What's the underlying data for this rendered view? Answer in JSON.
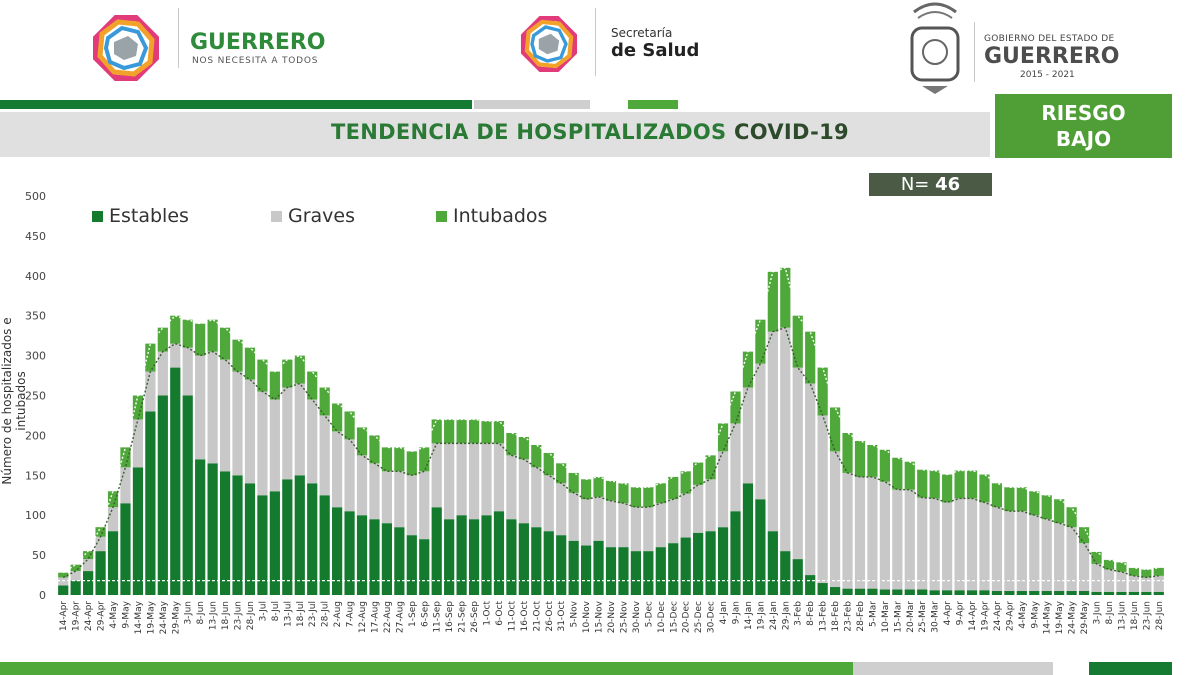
{
  "header": {
    "left_brand": {
      "name": "GUERRERO",
      "tagline": "NOS NECESITA A TODOS"
    },
    "center_brand": {
      "line1": "Secretaría",
      "line2": "de Salud"
    },
    "right_brand": {
      "line1": "GOBIERNO DEL ESTADO DE",
      "line2": "GUERRERO",
      "years": "2015 - 2021"
    }
  },
  "title": {
    "part1": "TENDENCIA DE HOSPITALIZADOS ",
    "part2": "COVID-19"
  },
  "risk": {
    "line1": "RIESGO",
    "line2": "BAJO"
  },
  "n_label": {
    "prefix": "N= ",
    "value": "46"
  },
  "colors": {
    "estables": "#147a2e",
    "graves": "#c8c8c8",
    "intubados": "#4fa83a",
    "risk_green": "#4f9e36",
    "title_green": "#2a7a36"
  },
  "chart_data": {
    "type": "bar",
    "stacked": true,
    "ylabel": "Número de hospitalizados e intubados",
    "ylim": [
      0,
      500
    ],
    "yticks": [
      0,
      50,
      100,
      150,
      200,
      250,
      300,
      350,
      400,
      450,
      500
    ],
    "legend": [
      "Estables",
      "Graves",
      "Intubados"
    ],
    "legend_position": "top-left",
    "categories": [
      "14-Apr",
      "19-Apr",
      "24-Apr",
      "29-Apr",
      "4-May",
      "9-May",
      "14-May",
      "19-May",
      "24-May",
      "29-May",
      "3-Jun",
      "8-Jun",
      "13-Jun",
      "18-Jun",
      "23-Jun",
      "28-Jun",
      "3-Jul",
      "8-Jul",
      "13-Jul",
      "18-Jul",
      "23-Jul",
      "28-Jul",
      "2-Aug",
      "7-Aug",
      "12-Aug",
      "17-Aug",
      "22-Aug",
      "27-Aug",
      "1-Sep",
      "6-Sep",
      "11-Sep",
      "16-Sep",
      "21-Sep",
      "26-Sep",
      "1-Oct",
      "6-Oct",
      "11-Oct",
      "16-Oct",
      "21-Oct",
      "26-Oct",
      "31-Oct",
      "5-Nov",
      "10-Nov",
      "15-Nov",
      "20-Nov",
      "25-Nov",
      "30-Nov",
      "5-Dec",
      "10-Dec",
      "15-Dec",
      "20-Dec",
      "25-Dec",
      "30-Dec",
      "4-Jan",
      "9-Jan",
      "14-Jan",
      "19-Jan",
      "24-Jan",
      "29-Jan",
      "3-Feb",
      "8-Feb",
      "13-Feb",
      "18-Feb",
      "23-Feb",
      "28-Feb",
      "5-Mar",
      "10-Mar",
      "15-Mar",
      "20-Mar",
      "25-Mar",
      "30-Mar",
      "4-Apr",
      "9-Apr",
      "14-Apr",
      "19-Apr",
      "24-Apr",
      "29-Apr",
      "4-May",
      "9-May",
      "14-May",
      "19-May",
      "24-May",
      "29-May",
      "3-Jun",
      "8-Jun",
      "13-Jun",
      "18-Jun",
      "23-Jun",
      "28-Jun"
    ],
    "series": [
      {
        "name": "Estables",
        "values": [
          12,
          18,
          30,
          55,
          80,
          115,
          160,
          230,
          250,
          285,
          250,
          170,
          165,
          155,
          150,
          140,
          125,
          130,
          145,
          150,
          140,
          125,
          110,
          105,
          100,
          95,
          90,
          85,
          75,
          70,
          110,
          95,
          100,
          95,
          100,
          105,
          95,
          90,
          85,
          80,
          75,
          68,
          62,
          68,
          60,
          60,
          55,
          55,
          60,
          65,
          72,
          78,
          80,
          85,
          105,
          140,
          120,
          80,
          55,
          45,
          25,
          15,
          10,
          8,
          8,
          8,
          7,
          7,
          7,
          7,
          6,
          6,
          6,
          6,
          6,
          5,
          5,
          5,
          5,
          5,
          5,
          5,
          5,
          4,
          4,
          4,
          4,
          4,
          4
        ]
      },
      {
        "name": "Graves",
        "values": [
          10,
          12,
          15,
          18,
          30,
          45,
          60,
          50,
          55,
          30,
          60,
          130,
          140,
          140,
          130,
          130,
          130,
          115,
          115,
          115,
          105,
          100,
          95,
          90,
          75,
          70,
          65,
          70,
          75,
          85,
          80,
          95,
          90,
          95,
          90,
          85,
          80,
          80,
          75,
          70,
          65,
          60,
          58,
          55,
          58,
          55,
          55,
          55,
          55,
          55,
          55,
          60,
          65,
          95,
          110,
          120,
          170,
          250,
          280,
          240,
          240,
          210,
          170,
          145,
          140,
          140,
          135,
          125,
          125,
          115,
          115,
          110,
          115,
          115,
          110,
          105,
          100,
          100,
          95,
          90,
          85,
          80,
          60,
          35,
          28,
          25,
          20,
          18,
          20
        ]
      },
      {
        "name": "Intubados",
        "values": [
          6,
          8,
          10,
          12,
          20,
          25,
          30,
          35,
          30,
          35,
          35,
          40,
          40,
          40,
          40,
          40,
          40,
          35,
          35,
          35,
          35,
          35,
          35,
          35,
          35,
          35,
          30,
          30,
          30,
          30,
          30,
          30,
          30,
          30,
          28,
          28,
          28,
          28,
          28,
          28,
          25,
          25,
          25,
          25,
          25,
          25,
          25,
          25,
          25,
          28,
          28,
          28,
          30,
          35,
          40,
          45,
          55,
          75,
          75,
          65,
          65,
          60,
          55,
          50,
          45,
          40,
          40,
          40,
          35,
          35,
          35,
          35,
          35,
          35,
          35,
          30,
          30,
          30,
          30,
          30,
          30,
          25,
          20,
          15,
          12,
          12,
          10,
          10,
          10
        ]
      }
    ]
  }
}
